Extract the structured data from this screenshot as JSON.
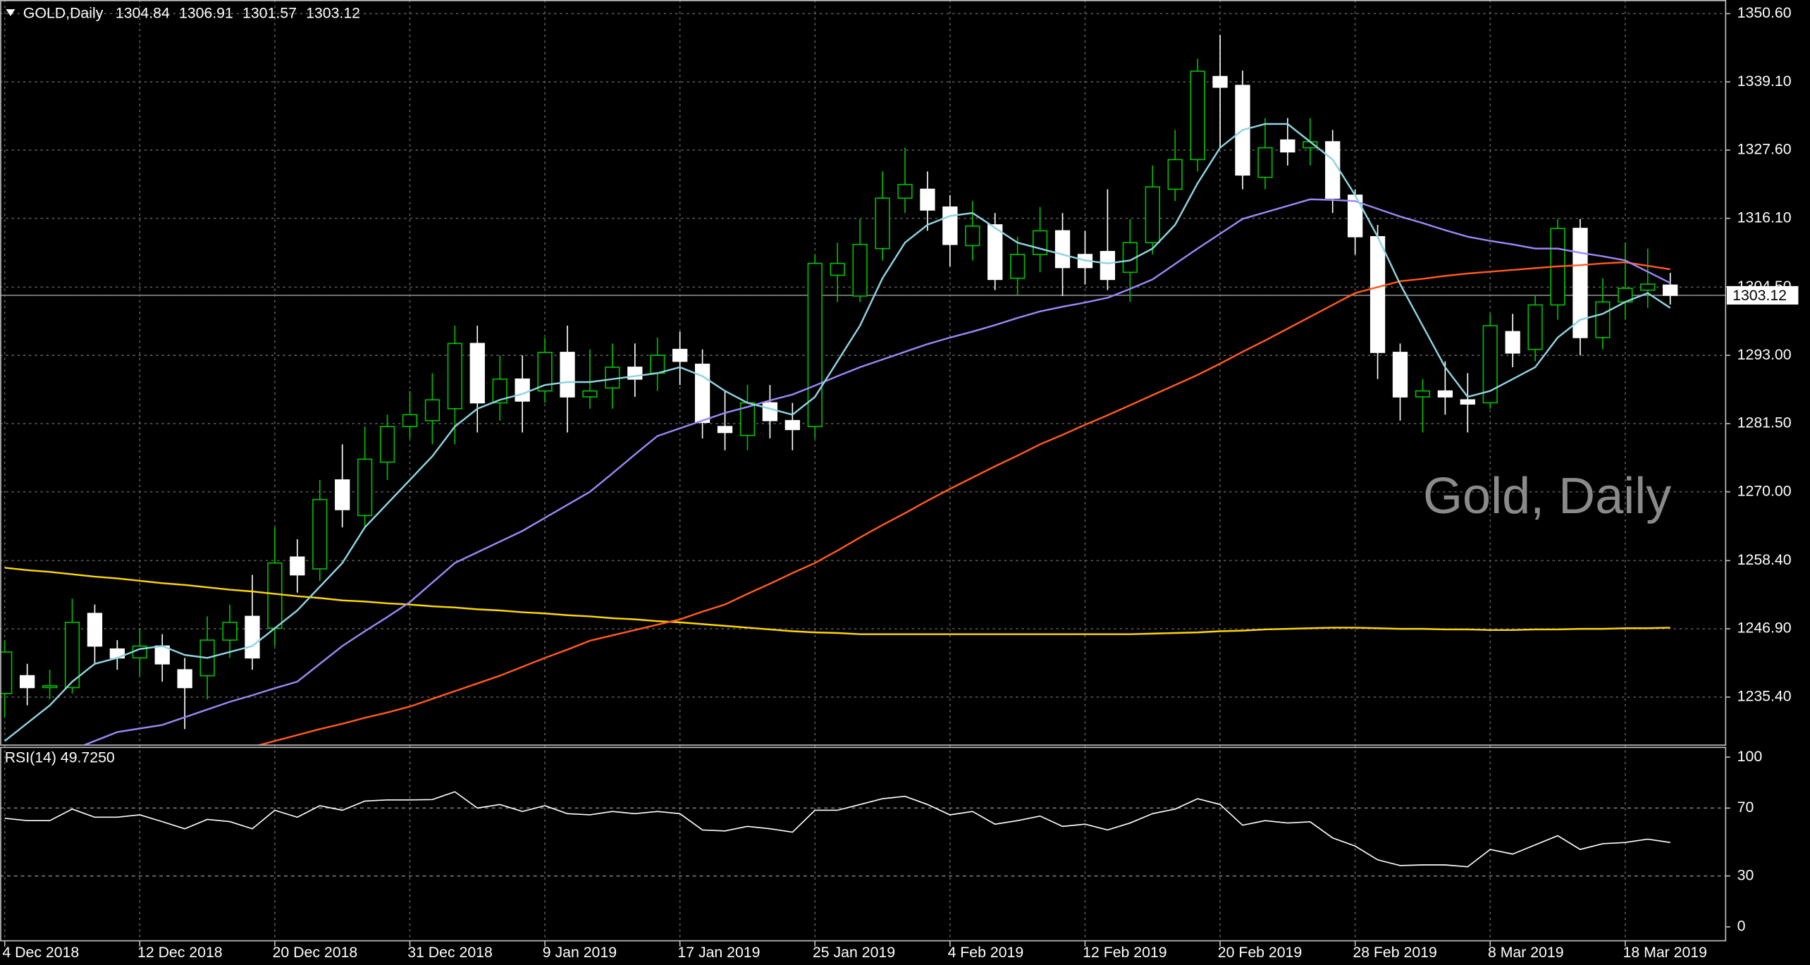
{
  "chart_data": [
    {
      "type": "candlestick",
      "title": "GOLD,Daily",
      "watermark": "Gold, Daily",
      "categories": [
        "4 Dec 2018",
        null,
        null,
        null,
        null,
        null,
        "12 Dec 2018",
        null,
        null,
        null,
        null,
        null,
        "20 Dec 2018",
        null,
        null,
        null,
        null,
        null,
        "31 Dec 2018",
        null,
        null,
        null,
        null,
        null,
        "9 Jan 2019",
        null,
        null,
        null,
        null,
        null,
        "17 Jan 2019",
        null,
        null,
        null,
        null,
        null,
        "25 Jan 2019",
        null,
        null,
        null,
        null,
        null,
        "4 Feb 2019",
        null,
        null,
        null,
        null,
        null,
        "12 Feb 2019",
        null,
        null,
        null,
        null,
        null,
        "20 Feb 2019",
        null,
        null,
        null,
        null,
        null,
        "28 Feb 2019",
        null,
        null,
        null,
        null,
        null,
        "8 Mar 2019",
        null,
        null,
        null,
        null,
        null,
        "18 Mar 2019",
        null,
        null
      ],
      "open": [
        1236,
        1239,
        1237,
        1237,
        1249.5,
        1243.5,
        1242,
        1244,
        1240,
        1239,
        1245,
        1249,
        1247,
        1259,
        1257,
        1272,
        1266,
        1275,
        1281,
        1282,
        1284,
        1295,
        1285,
        1289,
        1287,
        1293.5,
        1286,
        1287.5,
        1291,
        1290,
        1294,
        1291.5,
        1281,
        1279.5,
        1285,
        1282,
        1281,
        1306.5,
        1303,
        1311,
        1319.5,
        1321,
        1318,
        1311.5,
        1315,
        1306,
        1310,
        1314,
        1310,
        1310.5,
        1307,
        1312,
        1321,
        1326,
        1340,
        1338.5,
        1323,
        1329.3,
        1328,
        1329,
        1320,
        1313,
        1293.5,
        1286,
        1287,
        1285.5,
        1285,
        1297,
        1294,
        1301.5,
        1314.4,
        1296,
        1302,
        1304,
        1304.84
      ],
      "high": [
        1245,
        1241,
        1240,
        1252,
        1251,
        1245,
        1247,
        1246,
        1242,
        1249,
        1251,
        1256,
        1264,
        1262,
        1272,
        1278,
        1281,
        1283,
        1287,
        1290,
        1298,
        1298,
        1293,
        1293,
        1296,
        1298,
        1294,
        1295,
        1295,
        1296,
        1297,
        1294,
        1287,
        1288,
        1288,
        1285,
        1310,
        1312,
        1316,
        1324,
        1328,
        1324,
        1320,
        1319,
        1317,
        1313,
        1318,
        1317,
        1314,
        1321,
        1316,
        1325,
        1331,
        1343,
        1347,
        1341,
        1333,
        1333,
        1333,
        1331,
        1321,
        1315,
        1295,
        1289,
        1292,
        1290,
        1300,
        1300,
        1303,
        1316,
        1316,
        1306,
        1312,
        1311,
        1306.91
      ],
      "low": [
        1232,
        1234,
        1235,
        1236,
        1241,
        1240,
        1239,
        1238,
        1230,
        1235,
        1242,
        1240,
        1244,
        1253,
        1255,
        1264,
        1264,
        1272,
        1279,
        1278,
        1278,
        1280,
        1282,
        1280,
        1285,
        1280,
        1284,
        1284,
        1286,
        1287,
        1288,
        1279,
        1277,
        1277,
        1279,
        1277,
        1279,
        1302,
        1302,
        1309,
        1317,
        1314,
        1308,
        1309,
        1304,
        1303,
        1307,
        1303,
        1305,
        1304,
        1302,
        1310,
        1319,
        1324,
        1328,
        1321,
        1321,
        1325,
        1325,
        1317,
        1310,
        1289,
        1282,
        1280,
        1283,
        1280,
        1284,
        1291,
        1292,
        1299,
        1293,
        1294,
        1299,
        1301,
        1301.57
      ],
      "close": [
        1243,
        1237,
        1237.3,
        1248,
        1244,
        1242,
        1244,
        1241,
        1237,
        1245,
        1248,
        1242,
        1258,
        1256,
        1268.7,
        1267,
        1275.5,
        1281,
        1283,
        1285.5,
        1295,
        1285,
        1289,
        1285.3,
        1293.5,
        1286,
        1287,
        1291,
        1289,
        1293,
        1292,
        1281.7,
        1280,
        1285,
        1282,
        1280.5,
        1308.5,
        1308.5,
        1311.7,
        1319.5,
        1321.8,
        1317.5,
        1311.7,
        1314.8,
        1305.8,
        1310,
        1314,
        1307.8,
        1307.8,
        1305.8,
        1312,
        1321.4,
        1326,
        1340.9,
        1338.2,
        1323.4,
        1328,
        1327.3,
        1329,
        1319.5,
        1313,
        1293.5,
        1286,
        1287,
        1286,
        1284.8,
        1298,
        1293.4,
        1301.5,
        1314.4,
        1296,
        1302,
        1304.3,
        1305,
        1303.12
      ],
      "up_color": "#00c000",
      "down_color": "#ffffff",
      "overlays": [
        {
          "color": "#ffd700",
          "values": [
            1257.2,
            1256.8,
            1256.5,
            1256.1,
            1255.7,
            1255.4,
            1255.0,
            1254.6,
            1254.3,
            1253.9,
            1253.5,
            1253.2,
            1252.8,
            1252.4,
            1252.1,
            1251.7,
            1251.5,
            1251.2,
            1251.0,
            1250.7,
            1250.5,
            1250.2,
            1250.0,
            1249.7,
            1249.5,
            1249.2,
            1249.0,
            1248.7,
            1248.5,
            1248.2,
            1248.0,
            1247.7,
            1247.4,
            1247.1,
            1246.8,
            1246.5,
            1246.3,
            1246.2,
            1246.0,
            1246.0,
            1246.0,
            1246.0,
            1246.0,
            1246.0,
            1246.0,
            1246.0,
            1246.0,
            1246.0,
            1246.0,
            1246.0,
            1246.0,
            1246.1,
            1246.2,
            1246.3,
            1246.5,
            1246.6,
            1246.8,
            1246.9,
            1247.0,
            1247.1,
            1247.1,
            1247.0,
            1246.9,
            1246.9,
            1246.8,
            1246.8,
            1246.7,
            1246.7,
            1246.8,
            1246.8,
            1246.9,
            1246.9,
            1247.0,
            1247.0,
            1247.1
          ]
        },
        {
          "color": "#ff5a1e",
          "values": [
            1217.0,
            1217.9,
            1218.8,
            1219.7,
            1220.6,
            1221.5,
            1222.4,
            1223.3,
            1224.2,
            1225.1,
            1226.0,
            1227.0,
            1228.0,
            1229.0,
            1230.0,
            1230.9,
            1231.9,
            1232.8,
            1233.8,
            1235.1,
            1236.4,
            1237.7,
            1239.0,
            1240.5,
            1242.0,
            1243.4,
            1244.9,
            1245.8,
            1246.7,
            1247.6,
            1248.5,
            1249.8,
            1251.0,
            1252.8,
            1254.5,
            1256.3,
            1258.0,
            1260.1,
            1262.3,
            1264.4,
            1266.4,
            1268.5,
            1270.5,
            1272.4,
            1274.3,
            1276.1,
            1278.0,
            1279.6,
            1281.3,
            1282.9,
            1284.6,
            1286.3,
            1288.0,
            1289.7,
            1291.6,
            1293.6,
            1295.5,
            1297.5,
            1299.5,
            1301.5,
            1303.5,
            1304.5,
            1305.5,
            1305.9,
            1306.4,
            1306.8,
            1307.1,
            1307.4,
            1307.7,
            1308.0,
            1308.2,
            1308.5,
            1308.7,
            1308.1,
            1307.5
          ]
        },
        {
          "color": "#9b87f5",
          "values": [
            1222.0,
            1223.5,
            1225.0,
            1226.5,
            1228.0,
            1229.5,
            1230.1,
            1230.7,
            1232.0,
            1233.3,
            1234.6,
            1235.7,
            1236.9,
            1238.0,
            1241.0,
            1244.0,
            1246.5,
            1248.9,
            1251.4,
            1254.7,
            1258.0,
            1259.8,
            1261.6,
            1263.4,
            1265.6,
            1267.8,
            1270.0,
            1273.1,
            1276.3,
            1279.4,
            1280.7,
            1282.0,
            1283.3,
            1284.3,
            1285.4,
            1286.4,
            1287.9,
            1289.5,
            1291.0,
            1292.3,
            1293.6,
            1294.9,
            1296.0,
            1297.0,
            1298.1,
            1299.3,
            1300.4,
            1301.2,
            1301.9,
            1302.7,
            1304.2,
            1305.8,
            1308.4,
            1311.0,
            1313.5,
            1316.0,
            1317.1,
            1318.2,
            1319.3,
            1319.2,
            1319.0,
            1317.7,
            1316.4,
            1315.3,
            1314.1,
            1313.0,
            1312.3,
            1311.7,
            1311.0,
            1311.0,
            1310.3,
            1309.7,
            1309.0,
            1307.1,
            1305.2
          ]
        },
        {
          "color": "#8fd3e0",
          "values": [
            1228,
            1231,
            1234,
            1238,
            1241,
            1242,
            1243.5,
            1244,
            1242.5,
            1242,
            1243,
            1244,
            1247,
            1250,
            1254,
            1258,
            1264,
            1268,
            1272,
            1276,
            1281,
            1284,
            1285.5,
            1286.5,
            1288,
            1288.5,
            1288.5,
            1289,
            1289.5,
            1290,
            1291,
            1289.5,
            1287,
            1285,
            1284,
            1283,
            1286,
            1292,
            1298,
            1306,
            1312,
            1315,
            1316.5,
            1317,
            1314.5,
            1312,
            1311,
            1310,
            1309,
            1308.5,
            1309,
            1311,
            1315,
            1322,
            1328,
            1331,
            1332,
            1332,
            1329,
            1326,
            1320,
            1313,
            1305,
            1298,
            1291,
            1286,
            1287,
            1289,
            1291,
            1296,
            1299,
            1300,
            1302,
            1303.5,
            1301
          ]
        }
      ],
      "ylim": [
        1227.4,
        1352.9
      ],
      "yticks": [
        {
          "value": 1350.6,
          "label": "1350.60"
        },
        {
          "value": 1339.1,
          "label": "1339.10"
        },
        {
          "value": 1327.6,
          "label": "1327.60"
        },
        {
          "value": 1316.1,
          "label": "1316.10"
        },
        {
          "value": 1304.5,
          "label": "1304.50"
        },
        {
          "value": 1293,
          "label": "1293.00"
        },
        {
          "value": 1281.5,
          "label": "1281.50"
        },
        {
          "value": 1270,
          "label": "1270.00"
        },
        {
          "value": 1258.4,
          "label": "1258.40"
        },
        {
          "value": 1246.9,
          "label": "1246.90"
        },
        {
          "value": 1235.4,
          "label": "1235.40"
        }
      ],
      "grid": true
    },
    {
      "type": "line",
      "title": "RSI(14) 49.7250",
      "color": "#ffffff",
      "values": [
        64.0,
        62.6,
        62.6,
        69.4,
        64.6,
        64.6,
        66.0,
        62.0,
        57.8,
        63.3,
        62.0,
        57.8,
        68.7,
        64.6,
        71.4,
        68.7,
        74.1,
        74.8,
        74.8,
        75.0,
        79.6,
        70.0,
        72.1,
        68.0,
        71.4,
        66.7,
        66.0,
        68.0,
        66.7,
        68.0,
        66.7,
        57.1,
        56.5,
        59.2,
        57.8,
        55.8,
        68.7,
        68.7,
        72.1,
        75.5,
        76.9,
        72.1,
        66.0,
        68.0,
        60.5,
        62.6,
        65.3,
        59.2,
        60.5,
        57.1,
        61.2,
        66.7,
        69.4,
        75.5,
        72.1,
        59.9,
        62.6,
        61.2,
        61.9,
        52.4,
        47.6,
        39.5,
        36.1,
        36.5,
        36.5,
        35.4,
        45.6,
        42.9,
        48.3,
        53.7,
        45.6,
        49.0,
        49.7,
        51.7,
        49.725
      ],
      "ylim": [
        -8.2,
        105.4
      ],
      "yticks": [
        100,
        70,
        30,
        0
      ],
      "levels": [
        70,
        30
      ],
      "grid": true
    }
  ]
}
